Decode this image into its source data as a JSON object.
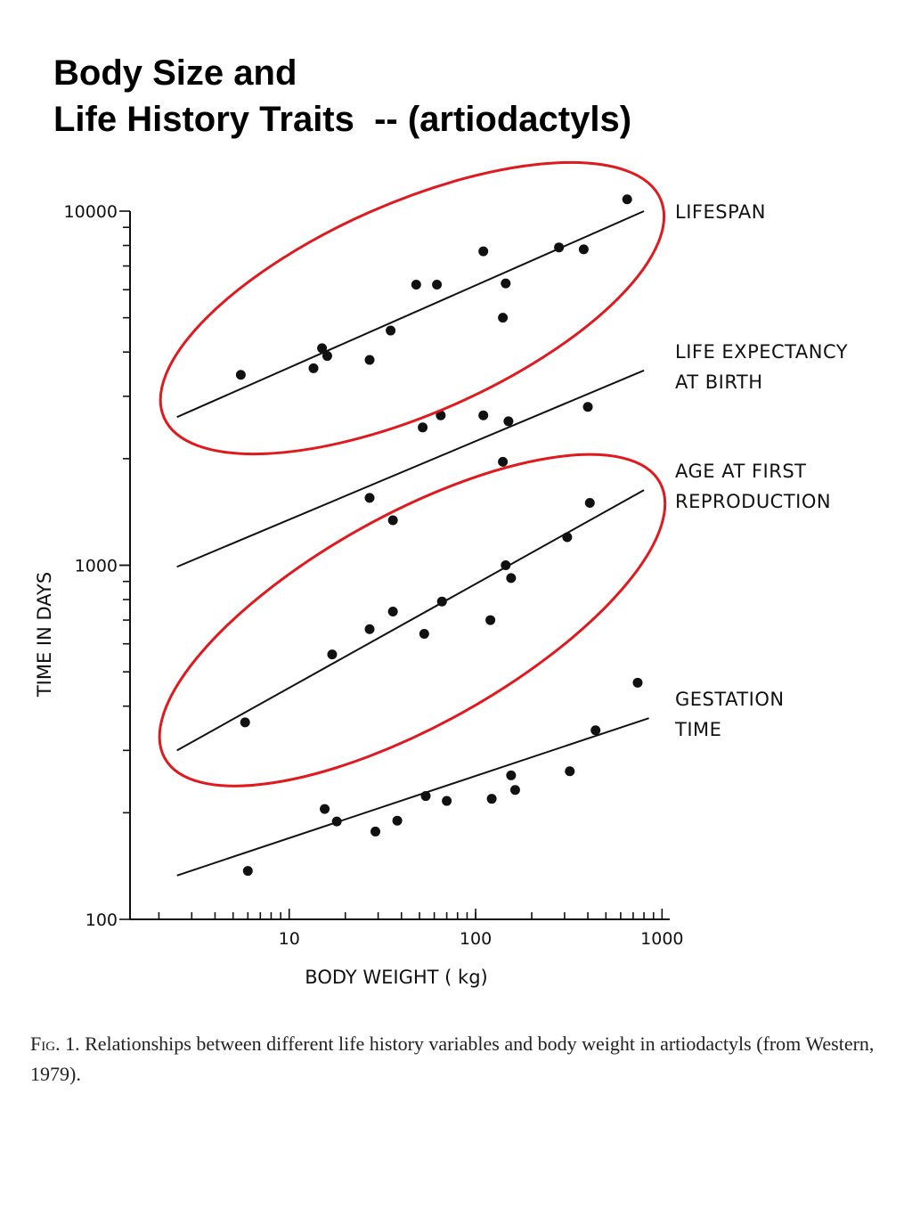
{
  "title": {
    "line1": "Body Size and",
    "line2": "Life History Traits  -- (artiodactyls)"
  },
  "colors": {
    "highlight": "#e0191e",
    "ink": "#111111"
  },
  "chart_data": {
    "type": "scatter",
    "xlabel": "BODY  WEIGHT  ( kg)",
    "ylabel": "TIME  IN  DAYS",
    "xscale": "log",
    "yscale": "log",
    "xlim": [
      1.4,
      1100
    ],
    "ylim": [
      100,
      10000
    ],
    "x_tick_labels": [
      "10",
      "100",
      "1000"
    ],
    "y_tick_labels": [
      "100",
      "1000",
      "10000"
    ],
    "series": [
      {
        "name": "LIFESPAN",
        "label_lines": [
          "LIFESPAN"
        ],
        "highlighted": true,
        "line": [
          [
            2.5,
            2620
          ],
          [
            800,
            10000
          ]
        ],
        "points": [
          [
            5.5,
            3450
          ],
          [
            13.5,
            3600
          ],
          [
            15,
            4100
          ],
          [
            16,
            3900
          ],
          [
            27,
            3800
          ],
          [
            35,
            4600
          ],
          [
            48,
            6200
          ],
          [
            62,
            6200
          ],
          [
            110,
            7700
          ],
          [
            140,
            5000
          ],
          [
            145,
            6250
          ],
          [
            280,
            7900
          ],
          [
            380,
            7800
          ],
          [
            650,
            10800
          ]
        ]
      },
      {
        "name": "LIFE EXPECTANCY AT BIRTH",
        "label_lines": [
          "LIFE  EXPECTANCY",
          "AT  BIRTH"
        ],
        "highlighted": false,
        "line": [
          [
            2.5,
            990
          ],
          [
            800,
            3550
          ]
        ],
        "points": [
          [
            52,
            2450
          ],
          [
            65,
            2650
          ],
          [
            110,
            2650
          ],
          [
            140,
            1960
          ],
          [
            150,
            2550
          ],
          [
            400,
            2800
          ]
        ]
      },
      {
        "name": "AGE AT FIRST REPRODUCTION",
        "label_lines": [
          "AGE  AT  FIRST",
          "REPRODUCTION"
        ],
        "highlighted": true,
        "line": [
          [
            2.5,
            300
          ],
          [
            800,
            1630
          ]
        ],
        "points": [
          [
            5.8,
            360
          ],
          [
            17,
            560
          ],
          [
            27,
            660
          ],
          [
            27,
            1550
          ],
          [
            36,
            740
          ],
          [
            36,
            1340
          ],
          [
            53,
            640
          ],
          [
            66,
            790
          ],
          [
            120,
            700
          ],
          [
            145,
            1000
          ],
          [
            155,
            920
          ],
          [
            310,
            1200
          ],
          [
            410,
            1500
          ]
        ]
      },
      {
        "name": "GESTATION TIME",
        "label_lines": [
          "GESTATION",
          "TIME"
        ],
        "highlighted": false,
        "line": [
          [
            2.5,
            133
          ],
          [
            850,
            370
          ]
        ],
        "points": [
          [
            6,
            137
          ],
          [
            15.5,
            205
          ],
          [
            18,
            189
          ],
          [
            29,
            177
          ],
          [
            38,
            190
          ],
          [
            54,
            223
          ],
          [
            70,
            216
          ],
          [
            122,
            219
          ],
          [
            155,
            255
          ],
          [
            163,
            232
          ],
          [
            320,
            262
          ],
          [
            440,
            342
          ],
          [
            740,
            466
          ]
        ]
      }
    ]
  },
  "caption": {
    "fig": "Fig. 1.",
    "text": "  Relationships between different life history variables and body weight in artiodactyls (from Western, 1979)."
  }
}
